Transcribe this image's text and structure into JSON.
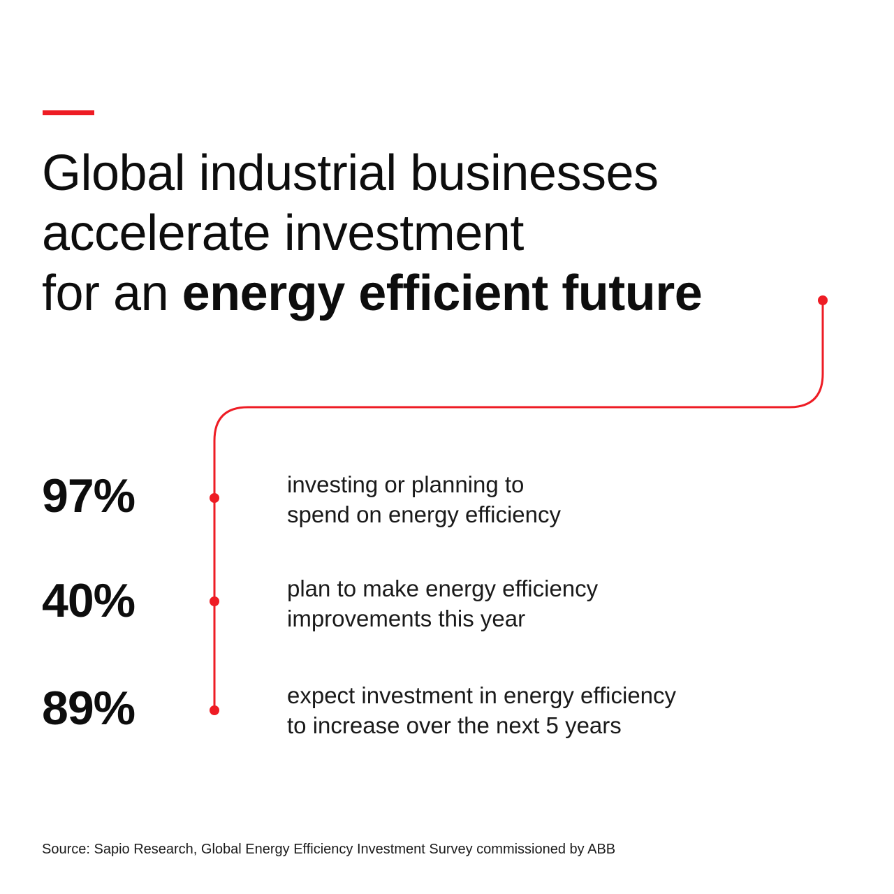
{
  "headline": {
    "line1": "Global industrial businesses",
    "line2": "accelerate investment",
    "line3_regular": "for an ",
    "line3_bold": "energy efficient future"
  },
  "stats": [
    {
      "value": "97%",
      "percent": 97,
      "description_line1": "investing or planning to",
      "description_line2": "spend on energy efficiency"
    },
    {
      "value": "40%",
      "percent": 40,
      "description_line1": "plan to make energy efficiency",
      "description_line2": "improvements this year"
    },
    {
      "value": "89%",
      "percent": 89,
      "description_line1": "expect investment in energy efficiency",
      "description_line2": "to increase over the next 5 years"
    }
  ],
  "source": "Source: Sapio Research, Global Energy Efficiency Investment Survey commissioned by ABB",
  "colors": {
    "accent": "#ee1c24",
    "text": "#0d0d0d"
  }
}
